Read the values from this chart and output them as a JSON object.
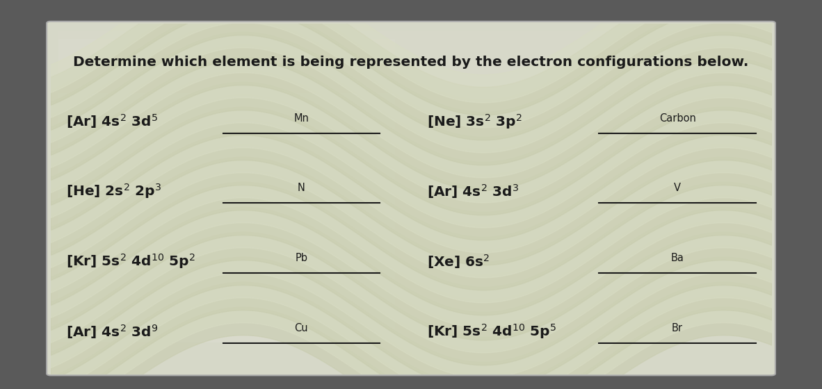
{
  "title": "Determine which element is being represented by the electron configurations below.",
  "title_fontsize": 14.5,
  "bg_outer": "#5a5a5a",
  "bg_card": "#d4d4c8",
  "bg_card_inner": "#dcdcd0",
  "stripe_colors": [
    "#c8cdb0",
    "#d8dcc0"
  ],
  "left_items": [
    {
      "config": "[Ar] 4s$^2$ 3d$^5$",
      "answer": "Mn",
      "row": 0
    },
    {
      "config": "[He] 2s$^2$ 2p$^3$",
      "answer": "N",
      "row": 1
    },
    {
      "config": "[Kr] 5s$^2$ 4d$^{10}$ 5p$^2$",
      "answer": "Pb",
      "row": 2
    },
    {
      "config": "[Ar] 4s$^2$ 3d$^9$",
      "answer": "Cu",
      "row": 3
    }
  ],
  "right_items": [
    {
      "config": "[Ne] 3s$^2$ 3p$^2$",
      "answer": "Carbon",
      "row": 0
    },
    {
      "config": "[Ar] 4s$^2$ 3d$^3$",
      "answer": "V",
      "row": 1
    },
    {
      "config": "[Xe] 6s$^2$",
      "answer": "Ba",
      "row": 2
    },
    {
      "config": "[Kr] 5s$^2$ 4d$^{10}$ 5p$^5$",
      "answer": "Br",
      "row": 3
    }
  ],
  "text_color": "#1a1a1a",
  "answer_fontsize": 10.5,
  "config_fontsize": 14.5
}
